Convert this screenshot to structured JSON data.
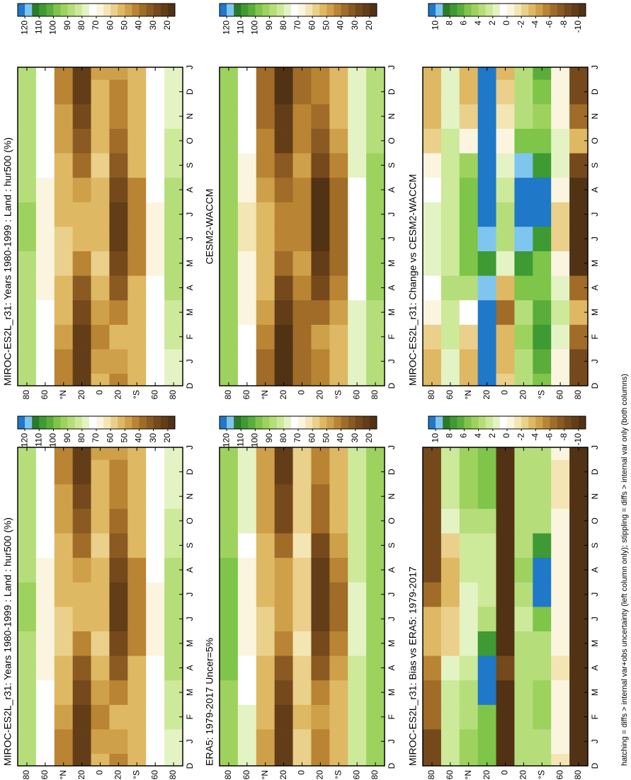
{
  "palette": [
    "#1f78c8",
    "#7ec6f0",
    "#2a7a2a",
    "#3e9a32",
    "#5aad3a",
    "#7ec54a",
    "#9ed25e",
    "#b5de7a",
    "#cde99a",
    "#e4f3c4",
    "#ffffff",
    "#fbf5e0",
    "#f3e6b4",
    "#ead08a",
    "#dfb864",
    "#cfa04a",
    "#b98433",
    "#a06c28",
    "#8a5a22",
    "#75491c",
    "#633d18",
    "#523214"
  ],
  "footnote": "hatching = diffs > internal var+obs uncertainty (left column only); stippling = diffs > internal var only (both columns)",
  "chart_data": [
    {
      "type": "contour",
      "title": "MIROC-ES2L_r31: Years 1980-1999 : Land : hur500 (%)",
      "categories": [
        "D",
        "J",
        "F",
        "M",
        "A",
        "M",
        "J",
        "J",
        "A",
        "S",
        "O",
        "N",
        "D",
        "J"
      ],
      "lats": [
        80,
        60,
        40,
        20,
        0,
        -20,
        -40,
        -60,
        -80
      ],
      "xlim": [
        90,
        -90
      ],
      "xticks": [
        80,
        60,
        {
          "value": 40,
          "label": "°N"
        },
        20,
        0,
        {
          "value": -20,
          "label": "20"
        },
        {
          "value": -40,
          "label": "°S"
        },
        {
          "value": -60,
          "label": "60"
        },
        {
          "value": -80,
          "label": "80"
        }
      ],
      "colorbar_lim": [
        125,
        15
      ],
      "colorbar_ticks": [
        120,
        110,
        100,
        90,
        80,
        70,
        60,
        50,
        40,
        30,
        20
      ],
      "values": [
        [
          88,
          88,
          88,
          88,
          90,
          90,
          92,
          92,
          90,
          88,
          88,
          88,
          88,
          88
        ],
        [
          75,
          75,
          74,
          72,
          70,
          68,
          66,
          66,
          68,
          72,
          74,
          75,
          75,
          75
        ],
        [
          45,
          45,
          48,
          52,
          55,
          58,
          58,
          55,
          52,
          50,
          48,
          46,
          45,
          45
        ],
        [
          25,
          25,
          25,
          28,
          35,
          45,
          50,
          50,
          48,
          40,
          32,
          28,
          25,
          25
        ],
        [
          50,
          48,
          45,
          48,
          55,
          58,
          55,
          52,
          55,
          58,
          55,
          52,
          50,
          48
        ],
        [
          45,
          48,
          50,
          45,
          35,
          28,
          25,
          25,
          28,
          35,
          40,
          45,
          45,
          48
        ],
        [
          55,
          55,
          55,
          55,
          50,
          45,
          42,
          42,
          45,
          50,
          55,
          55,
          55,
          55
        ],
        [
          75,
          75,
          75,
          74,
          72,
          70,
          70,
          70,
          72,
          74,
          75,
          75,
          75,
          75
        ],
        [
          80,
          80,
          82,
          84,
          86,
          86,
          86,
          86,
          86,
          84,
          82,
          80,
          80,
          80
        ]
      ]
    },
    {
      "type": "contour",
      "title": "MIROC-ES2L_r31: Years 1980-1999 : Land : hur500 (%)",
      "categories": [
        "D",
        "J",
        "F",
        "M",
        "A",
        "M",
        "J",
        "J",
        "A",
        "S",
        "O",
        "N",
        "D",
        "J"
      ],
      "lats": [
        80,
        60,
        40,
        20,
        0,
        -20,
        -40,
        -60,
        -80
      ],
      "xlim": [
        90,
        -90
      ],
      "xticks": [
        80,
        60,
        {
          "value": 40,
          "label": "°N"
        },
        20,
        0,
        {
          "value": -20,
          "label": "20"
        },
        {
          "value": -40,
          "label": "°S"
        },
        {
          "value": -60,
          "label": "60"
        },
        {
          "value": -80,
          "label": "80"
        }
      ],
      "colorbar_lim": [
        125,
        15
      ],
      "colorbar_ticks": [
        120,
        110,
        100,
        90,
        80,
        70,
        60,
        50,
        40,
        30,
        20
      ],
      "values": [
        [
          88,
          88,
          88,
          88,
          90,
          90,
          92,
          92,
          90,
          88,
          88,
          88,
          88,
          88
        ],
        [
          75,
          75,
          74,
          72,
          70,
          68,
          66,
          66,
          68,
          72,
          74,
          75,
          75,
          75
        ],
        [
          45,
          45,
          48,
          52,
          55,
          58,
          58,
          55,
          52,
          50,
          48,
          46,
          45,
          45
        ],
        [
          25,
          25,
          25,
          28,
          35,
          45,
          50,
          50,
          48,
          40,
          32,
          28,
          25,
          25
        ],
        [
          50,
          48,
          45,
          48,
          55,
          58,
          55,
          52,
          55,
          58,
          55,
          52,
          50,
          48
        ],
        [
          45,
          48,
          50,
          45,
          35,
          28,
          25,
          25,
          28,
          35,
          40,
          45,
          45,
          48
        ],
        [
          55,
          55,
          55,
          55,
          50,
          45,
          42,
          42,
          45,
          50,
          55,
          55,
          55,
          55
        ],
        [
          75,
          75,
          75,
          74,
          72,
          70,
          70,
          70,
          72,
          74,
          75,
          75,
          75,
          75
        ],
        [
          80,
          80,
          82,
          84,
          86,
          86,
          86,
          86,
          86,
          84,
          82,
          80,
          80,
          80
        ]
      ]
    },
    {
      "type": "contour",
      "title": "CESM2-WACCM",
      "categories": [
        "D",
        "J",
        "F",
        "M",
        "A",
        "M",
        "J",
        "J",
        "A",
        "S",
        "O",
        "N",
        "D",
        "J"
      ],
      "lats": [
        80,
        60,
        40,
        20,
        0,
        -20,
        -40,
        -60,
        -80
      ],
      "xlim": [
        90,
        -90
      ],
      "xticks": [
        80,
        60,
        {
          "value": 40,
          "label": "°N"
        },
        20,
        0,
        {
          "value": -20,
          "label": "20"
        },
        {
          "value": -40,
          "label": "°S"
        },
        {
          "value": -60,
          "label": "60"
        },
        {
          "value": -80,
          "label": "80"
        }
      ],
      "colorbar_lim": [
        125,
        15
      ],
      "colorbar_ticks": [
        120,
        110,
        100,
        90,
        80,
        70,
        60,
        50,
        40,
        30,
        20
      ],
      "values": [
        [
          92,
          92,
          92,
          92,
          93,
          94,
          95,
          95,
          94,
          93,
          92,
          92,
          92,
          92
        ],
        [
          72,
          72,
          72,
          70,
          68,
          66,
          64,
          64,
          66,
          70,
          72,
          72,
          72,
          72
        ],
        [
          40,
          40,
          42,
          46,
          50,
          52,
          52,
          50,
          46,
          44,
          42,
          40,
          40,
          40
        ],
        [
          20,
          20,
          20,
          22,
          28,
          38,
          44,
          44,
          40,
          32,
          25,
          22,
          20,
          20
        ],
        [
          40,
          38,
          36,
          40,
          45,
          48,
          45,
          42,
          45,
          48,
          45,
          42,
          40,
          38
        ],
        [
          42,
          44,
          46,
          40,
          30,
          22,
          18,
          18,
          20,
          28,
          35,
          40,
          42,
          44
        ],
        [
          50,
          50,
          50,
          48,
          44,
          40,
          36,
          36,
          40,
          44,
          48,
          50,
          50,
          50
        ],
        [
          78,
          78,
          78,
          76,
          74,
          72,
          72,
          72,
          74,
          76,
          78,
          78,
          78,
          78
        ],
        [
          90,
          90,
          90,
          90,
          92,
          92,
          92,
          92,
          92,
          92,
          90,
          90,
          90,
          90
        ]
      ]
    },
    {
      "type": "contour",
      "title": "ERA5: 1979-2017 Uncer=5%",
      "categories": [
        "D",
        "J",
        "F",
        "M",
        "A",
        "M",
        "J",
        "J",
        "A",
        "S",
        "O",
        "N",
        "D",
        "J"
      ],
      "lats": [
        80,
        60,
        40,
        20,
        0,
        -20,
        -40,
        -60,
        -80
      ],
      "xlim": [
        90,
        -90
      ],
      "xticks": [
        80,
        60,
        {
          "value": 40,
          "label": "°N"
        },
        20,
        0,
        {
          "value": -20,
          "label": "20"
        },
        {
          "value": -40,
          "label": "°S"
        },
        {
          "value": -60,
          "label": "60"
        },
        {
          "value": -80,
          "label": "80"
        }
      ],
      "colorbar_lim": [
        125,
        15
      ],
      "colorbar_ticks": [
        120,
        110,
        100,
        90,
        80,
        70,
        60,
        50,
        40,
        30,
        20
      ],
      "values": [
        [
          95,
          95,
          95,
          95,
          96,
          96,
          97,
          97,
          96,
          95,
          95,
          95,
          95,
          95
        ],
        [
          78,
          78,
          76,
          74,
          72,
          70,
          68,
          68,
          70,
          74,
          76,
          78,
          78,
          78
        ],
        [
          48,
          48,
          50,
          52,
          54,
          56,
          56,
          55,
          52,
          50,
          48,
          48,
          48,
          48
        ],
        [
          25,
          25,
          24,
          26,
          32,
          42,
          48,
          48,
          46,
          38,
          30,
          27,
          25,
          25
        ],
        [
          58,
          58,
          55,
          56,
          60,
          62,
          60,
          58,
          60,
          62,
          60,
          58,
          58,
          58
        ],
        [
          42,
          44,
          46,
          42,
          32,
          26,
          22,
          22,
          24,
          30,
          36,
          40,
          42,
          44
        ],
        [
          52,
          52,
          52,
          50,
          46,
          42,
          40,
          40,
          42,
          46,
          50,
          52,
          52,
          52
        ],
        [
          85,
          85,
          85,
          84,
          82,
          80,
          80,
          80,
          82,
          84,
          85,
          85,
          85,
          85
        ],
        [
          92,
          92,
          92,
          92,
          94,
          94,
          94,
          94,
          94,
          94,
          92,
          92,
          92,
          92
        ]
      ]
    },
    {
      "type": "contour",
      "title": "MIROC-ES2L_r31: Change vs CESM2-WACCM",
      "categories": [
        "D",
        "J",
        "F",
        "M",
        "A",
        "M",
        "J",
        "J",
        "A",
        "S",
        "O",
        "N",
        "D",
        "J"
      ],
      "lats": [
        80,
        60,
        40,
        20,
        0,
        -20,
        -40,
        -60,
        -80
      ],
      "xlim": [
        90,
        -90
      ],
      "xticks": [
        80,
        60,
        {
          "value": 40,
          "label": "°N"
        },
        20,
        0,
        {
          "value": -20,
          "label": "20"
        },
        {
          "value": -40,
          "label": "°S"
        },
        {
          "value": -60,
          "label": "60"
        },
        {
          "value": -80,
          "label": "80"
        }
      ],
      "colorbar_lim": [
        11,
        -11
      ],
      "colorbar_ticks": [
        10,
        8,
        6,
        4,
        2,
        0,
        -2,
        -4,
        -6,
        -8,
        -10
      ],
      "values": [
        [
          -3,
          -3,
          -2,
          0,
          1,
          2,
          2,
          2,
          1,
          0,
          -2,
          -3,
          -3,
          -3
        ],
        [
          2,
          2,
          3,
          3,
          4,
          3,
          3,
          3,
          3,
          3,
          3,
          2,
          2,
          2
        ],
        [
          -4,
          -4,
          -2,
          1,
          4,
          6,
          6,
          6,
          6,
          5,
          0,
          -2,
          -4,
          -4
        ],
        [
          11,
          11,
          11,
          11,
          10,
          8,
          10,
          11,
          11,
          11,
          11,
          11,
          11,
          11
        ],
        [
          -2,
          -3,
          -4,
          -6,
          -4,
          2,
          4,
          4,
          3,
          2,
          0,
          -1,
          -2,
          -3
        ],
        [
          4,
          4,
          5,
          4,
          6,
          8,
          10,
          11,
          11,
          10,
          6,
          4,
          4,
          4
        ],
        [
          6,
          7,
          8,
          7,
          6,
          6,
          8,
          11,
          11,
          8,
          6,
          5,
          6,
          7
        ],
        [
          0,
          0,
          2,
          3,
          2,
          0,
          -2,
          -2,
          0,
          2,
          2,
          0,
          0,
          0
        ],
        [
          -8,
          -8,
          -6,
          -4,
          -6,
          -10,
          -10,
          -10,
          -10,
          -8,
          -4,
          -6,
          -8,
          -8
        ]
      ]
    },
    {
      "type": "contour",
      "title": "MIROC-ES2L_r31: Bias vs ERA5: 1979-2017",
      "categories": [
        "D",
        "J",
        "F",
        "M",
        "A",
        "M",
        "J",
        "J",
        "A",
        "S",
        "O",
        "N",
        "D",
        "J"
      ],
      "lats": [
        80,
        60,
        40,
        20,
        0,
        -20,
        -40,
        -60,
        -80
      ],
      "xlim": [
        90,
        -90
      ],
      "xticks": [
        80,
        60,
        {
          "value": 40,
          "label": "°N"
        },
        20,
        0,
        {
          "value": -20,
          "label": "20"
        },
        {
          "value": -40,
          "label": "°S"
        },
        {
          "value": -60,
          "label": "60"
        },
        {
          "value": -80,
          "label": "80"
        }
      ],
      "colorbar_lim": [
        11,
        -11
      ],
      "colorbar_ticks": [
        10,
        8,
        6,
        4,
        2,
        0,
        -2,
        -4,
        -6,
        -8,
        -10
      ],
      "values": [
        [
          -8,
          -8,
          -6,
          -6,
          -5,
          -4,
          -4,
          -6,
          -8,
          -8,
          -8,
          -8,
          -8,
          -8
        ],
        [
          3,
          3,
          3,
          3,
          2,
          -2,
          -2,
          -4,
          -4,
          -2,
          2,
          3,
          3,
          3
        ],
        [
          5,
          5,
          4,
          4,
          3,
          2,
          2,
          2,
          3,
          3,
          4,
          5,
          5,
          5
        ],
        [
          6,
          6,
          6,
          11,
          12,
          8,
          4,
          3,
          3,
          3,
          4,
          6,
          6,
          6
        ],
        [
          -10,
          -10,
          -10,
          -10,
          -8,
          -10,
          -10,
          -10,
          -10,
          -10,
          -10,
          -10,
          -10,
          -10
        ],
        [
          4,
          4,
          4,
          4,
          4,
          4,
          3,
          4,
          5,
          4,
          4,
          4,
          4,
          4
        ],
        [
          4,
          4,
          5,
          5,
          4,
          4,
          6,
          11,
          11,
          8,
          4,
          4,
          4,
          4
        ],
        [
          -1,
          0,
          0,
          0,
          -1,
          0,
          0,
          0,
          0,
          0,
          0,
          -1,
          -1,
          0
        ],
        [
          -10,
          -10,
          -10,
          -10,
          -10,
          -10,
          -10,
          -10,
          -10,
          -10,
          -10,
          -10,
          -10,
          -10
        ]
      ]
    }
  ]
}
